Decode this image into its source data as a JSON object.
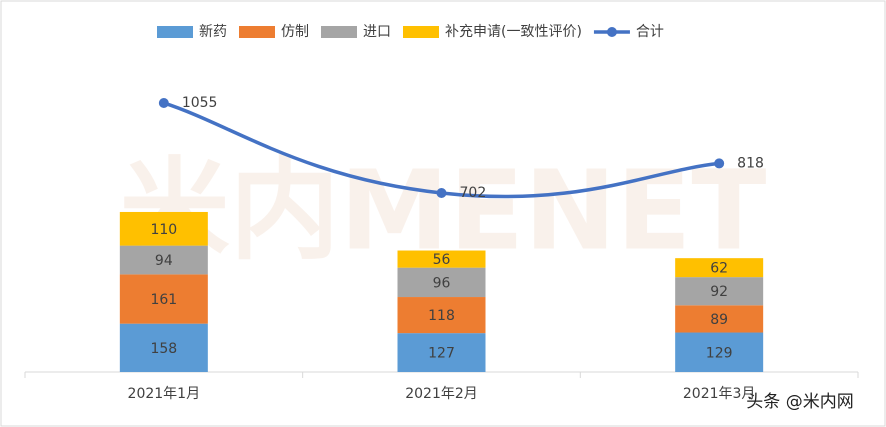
{
  "chart_data": {
    "type": "bar",
    "stacked": true,
    "categories": [
      "2021年1月",
      "2021年2月",
      "2021年3月"
    ],
    "series": [
      {
        "name": "新药",
        "color": "#5b9bd5",
        "values": [
          158,
          127,
          129
        ]
      },
      {
        "name": "仿制",
        "color": "#ed7d31",
        "values": [
          161,
          118,
          89
        ]
      },
      {
        "name": "进口",
        "color": "#a5a5a5",
        "values": [
          94,
          96,
          92
        ]
      },
      {
        "name": "补充申请(一致性评价)",
        "color": "#ffc000",
        "values": [
          110,
          56,
          62
        ]
      },
      {
        "name": "合计",
        "color": "#4472c4",
        "type": "line",
        "axis": "y2",
        "values": [
          1055,
          702,
          818
        ]
      }
    ],
    "ylim": [
      0,
      1000
    ],
    "y2lim": [
      0,
      1200
    ],
    "legend": "top",
    "watermark": "米内MENET",
    "credit": "头条 @米内网"
  }
}
